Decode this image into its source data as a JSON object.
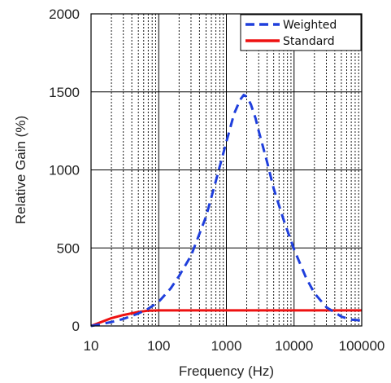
{
  "chart_data": {
    "type": "line",
    "title": "",
    "xlabel": "Frequency (Hz)",
    "ylabel": "Relative Gain (%)",
    "xscale": "log",
    "xlim": [
      10,
      100000
    ],
    "ylim": [
      0,
      2000
    ],
    "xticks": [
      10,
      100,
      1000,
      10000,
      100000
    ],
    "xtick_labels": [
      "10",
      "100",
      "1000",
      "10000",
      "100000"
    ],
    "yticks": [
      0,
      500,
      1000,
      1500,
      2000
    ],
    "ytick_labels": [
      "0",
      "500",
      "1000",
      "1500",
      "2000"
    ],
    "grid": true,
    "legend_position": "top-right",
    "series": [
      {
        "name": "Weighted",
        "color": "#1f3fdc",
        "style": "dashed",
        "x": [
          10,
          20,
          30,
          50,
          70,
          100,
          150,
          200,
          300,
          500,
          700,
          1000,
          1300,
          1600,
          1800,
          2000,
          2300,
          2700,
          3000,
          4000,
          5000,
          7000,
          10000,
          15000,
          20000,
          30000,
          50000,
          70000,
          100000
        ],
        "y": [
          0,
          25,
          45,
          80,
          110,
          155,
          240,
          320,
          450,
          700,
          930,
          1180,
          1360,
          1450,
          1480,
          1470,
          1420,
          1330,
          1250,
          1050,
          880,
          680,
          490,
          310,
          210,
          120,
          60,
          40,
          35
        ]
      },
      {
        "name": "Standard",
        "color": "#ee1111",
        "style": "solid",
        "x": [
          10,
          20,
          30,
          50,
          70,
          100,
          1000,
          10000,
          100000
        ],
        "y": [
          0,
          50,
          70,
          90,
          98,
          100,
          100,
          100,
          100
        ]
      }
    ]
  }
}
